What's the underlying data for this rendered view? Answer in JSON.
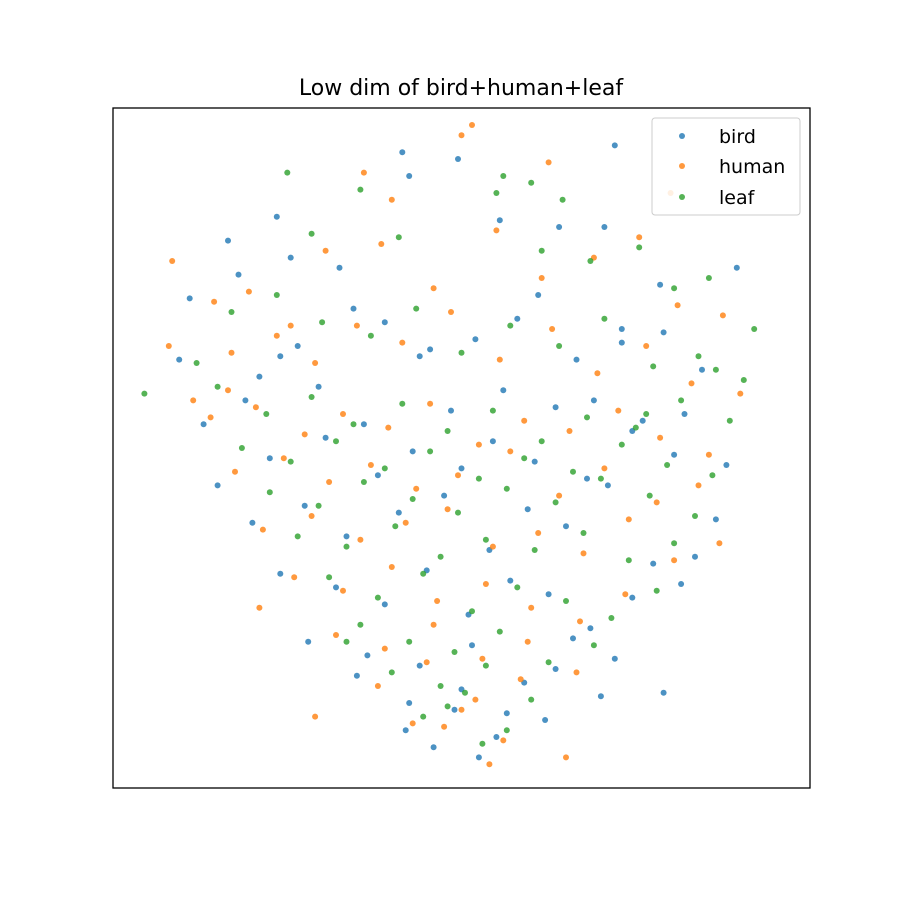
{
  "chart_data": {
    "type": "scatter",
    "title": "Low dim of bird+human+leaf",
    "xlabel": "",
    "ylabel": "",
    "x_ticks": "hidden",
    "y_ticks": "hidden",
    "xlim": [
      -1.0,
      1.0
    ],
    "ylim": [
      -1.0,
      1.0
    ],
    "grid": false,
    "legend": {
      "position": "top-right"
    },
    "series": [
      {
        "name": "bird",
        "color": "#1f77b4",
        "x": [
          -0.17,
          -0.15,
          -0.01,
          0.44,
          0.11,
          0.28,
          -0.53,
          -0.67,
          -0.78,
          -0.64,
          -0.52,
          -0.12,
          -0.35,
          -0.49,
          0.22,
          0.41,
          0.57,
          0.79,
          0.46,
          -0.81,
          -0.74,
          -0.58,
          -0.47,
          -0.31,
          -0.22,
          -0.09,
          0.04,
          0.16,
          0.33,
          0.46,
          0.58,
          0.69,
          -0.62,
          -0.41,
          -0.28,
          -0.03,
          0.12,
          0.27,
          0.38,
          0.52,
          0.64,
          0.76,
          -0.7,
          -0.55,
          -0.39,
          -0.24,
          -0.14,
          0.0,
          0.09,
          0.21,
          0.36,
          0.49,
          0.61,
          0.73,
          -0.6,
          -0.45,
          -0.33,
          -0.18,
          -0.05,
          0.08,
          0.19,
          0.3,
          0.42,
          0.55,
          0.67,
          -0.52,
          -0.36,
          -0.22,
          -0.1,
          0.02,
          0.14,
          0.25,
          0.37,
          0.49,
          0.63,
          -0.44,
          -0.27,
          -0.12,
          0.03,
          0.18,
          0.32,
          0.44,
          0.58,
          -0.3,
          -0.15,
          0.0,
          0.13,
          0.27,
          0.4,
          -0.16,
          -0.02,
          0.1,
          0.24,
          -0.08,
          0.05
        ],
        "y": [
          0.87,
          0.8,
          0.85,
          0.89,
          0.67,
          0.65,
          0.68,
          0.61,
          0.44,
          0.51,
          0.27,
          0.27,
          0.53,
          0.56,
          0.45,
          0.65,
          0.48,
          0.53,
          0.35,
          0.26,
          0.07,
          0.21,
          0.3,
          0.41,
          0.37,
          0.29,
          0.32,
          0.38,
          0.26,
          0.31,
          0.34,
          0.23,
          0.14,
          0.18,
          0.07,
          0.11,
          0.17,
          0.12,
          0.14,
          0.08,
          0.1,
          -0.05,
          -0.11,
          -0.03,
          0.03,
          -0.08,
          -0.01,
          -0.06,
          0.02,
          -0.04,
          -0.09,
          0.05,
          -0.02,
          -0.21,
          -0.22,
          -0.17,
          -0.26,
          -0.19,
          -0.14,
          -0.3,
          -0.18,
          -0.23,
          -0.11,
          -0.34,
          -0.32,
          -0.37,
          -0.41,
          -0.46,
          -0.36,
          -0.49,
          -0.39,
          -0.43,
          -0.53,
          -0.44,
          -0.4,
          -0.57,
          -0.61,
          -0.64,
          -0.58,
          -0.69,
          -0.56,
          -0.62,
          -0.72,
          -0.67,
          -0.75,
          -0.71,
          -0.78,
          -0.65,
          -0.73,
          -0.83,
          -0.77,
          -0.85,
          -0.8,
          -0.88,
          -0.91
        ]
      },
      {
        "name": "human",
        "color": "#ff7f0e",
        "x": [
          0.03,
          0.0,
          -0.28,
          -0.2,
          0.25,
          0.6,
          -0.83,
          -0.84,
          -0.71,
          -0.61,
          -0.67,
          -0.49,
          -0.39,
          -0.23,
          -0.08,
          0.1,
          0.23,
          0.38,
          0.51,
          0.62,
          0.75,
          -0.77,
          -0.66,
          -0.53,
          -0.42,
          -0.3,
          -0.17,
          -0.03,
          0.11,
          0.26,
          0.39,
          0.53,
          0.66,
          0.8,
          -0.72,
          -0.59,
          -0.45,
          -0.34,
          -0.21,
          -0.09,
          0.05,
          0.18,
          0.31,
          0.45,
          0.57,
          0.71,
          -0.65,
          -0.51,
          -0.38,
          -0.26,
          -0.13,
          -0.01,
          0.14,
          0.28,
          0.41,
          0.56,
          0.68,
          -0.57,
          -0.43,
          -0.29,
          -0.16,
          -0.04,
          0.09,
          0.22,
          0.35,
          0.48,
          0.61,
          0.74,
          -0.48,
          -0.34,
          -0.2,
          -0.07,
          0.07,
          0.2,
          0.34,
          0.47,
          -0.36,
          -0.22,
          -0.08,
          0.06,
          0.19,
          0.33,
          -0.24,
          -0.1,
          0.04,
          0.17,
          -0.14,
          0.0,
          0.12,
          -0.05,
          0.08,
          -0.42,
          0.3,
          -0.58
        ],
        "y": [
          0.95,
          0.92,
          0.81,
          0.73,
          0.84,
          0.75,
          0.55,
          0.3,
          0.43,
          0.46,
          0.17,
          0.36,
          0.58,
          0.6,
          0.47,
          0.64,
          0.5,
          0.56,
          0.62,
          0.42,
          0.39,
          0.14,
          0.28,
          0.33,
          0.25,
          0.36,
          0.31,
          0.4,
          0.26,
          0.35,
          0.22,
          0.3,
          0.19,
          0.16,
          0.09,
          0.12,
          0.04,
          0.1,
          0.06,
          0.13,
          0.01,
          0.08,
          0.05,
          0.11,
          0.03,
          -0.02,
          -0.07,
          -0.03,
          -0.1,
          -0.05,
          -0.12,
          -0.08,
          -0.01,
          -0.14,
          -0.06,
          -0.16,
          -0.11,
          -0.24,
          -0.2,
          -0.27,
          -0.22,
          -0.18,
          -0.29,
          -0.25,
          -0.31,
          -0.21,
          -0.33,
          -0.28,
          -0.38,
          -0.42,
          -0.35,
          -0.45,
          -0.4,
          -0.47,
          -0.51,
          -0.43,
          -0.55,
          -0.59,
          -0.52,
          -0.62,
          -0.57,
          -0.66,
          -0.7,
          -0.63,
          -0.74,
          -0.68,
          -0.81,
          -0.77,
          -0.86,
          -0.82,
          -0.93,
          -0.79,
          -0.91,
          -0.47
        ]
      },
      {
        "name": "leaf",
        "color": "#2ca02c",
        "x": [
          0.12,
          0.2,
          0.29,
          -0.5,
          -0.43,
          -0.29,
          0.1,
          -0.18,
          0.23,
          0.37,
          0.51,
          0.71,
          0.61,
          0.84,
          0.73,
          -0.76,
          -0.91,
          -0.66,
          -0.53,
          -0.4,
          -0.26,
          -0.13,
          0.0,
          0.14,
          0.28,
          0.41,
          0.55,
          0.68,
          0.81,
          -0.7,
          -0.56,
          -0.43,
          -0.31,
          -0.17,
          -0.04,
          0.09,
          0.23,
          0.36,
          0.5,
          0.63,
          0.77,
          -0.63,
          -0.49,
          -0.36,
          -0.22,
          -0.09,
          0.05,
          0.18,
          0.32,
          0.46,
          0.59,
          0.72,
          -0.55,
          -0.41,
          -0.28,
          -0.14,
          -0.01,
          0.13,
          0.27,
          0.4,
          0.54,
          0.67,
          -0.47,
          -0.33,
          -0.19,
          -0.06,
          0.07,
          0.21,
          0.35,
          0.48,
          0.61,
          -0.38,
          -0.24,
          -0.11,
          0.03,
          0.16,
          0.3,
          0.43,
          0.56,
          -0.29,
          -0.15,
          -0.02,
          0.11,
          0.25,
          0.38,
          -0.2,
          -0.06,
          0.07,
          0.2,
          -0.11,
          0.01,
          0.13,
          -0.04,
          0.06,
          0.53,
          -0.33
        ],
        "y": [
          0.8,
          0.78,
          0.73,
          0.81,
          0.63,
          0.76,
          0.75,
          0.62,
          0.58,
          0.55,
          0.59,
          0.5,
          0.47,
          0.35,
          0.23,
          0.25,
          0.16,
          0.4,
          0.45,
          0.37,
          0.33,
          0.41,
          0.28,
          0.36,
          0.3,
          0.38,
          0.24,
          0.27,
          0.2,
          0.18,
          0.1,
          0.15,
          0.07,
          0.13,
          0.05,
          0.11,
          0.02,
          0.09,
          0.06,
          0.14,
          0.08,
          0.0,
          -0.04,
          0.02,
          -0.06,
          -0.01,
          -0.09,
          -0.03,
          -0.07,
          0.01,
          -0.05,
          -0.08,
          -0.13,
          -0.17,
          -0.1,
          -0.15,
          -0.19,
          -0.12,
          -0.16,
          -0.09,
          -0.14,
          -0.2,
          -0.26,
          -0.29,
          -0.23,
          -0.32,
          -0.27,
          -0.3,
          -0.25,
          -0.33,
          -0.28,
          -0.38,
          -0.44,
          -0.37,
          -0.48,
          -0.41,
          -0.45,
          -0.5,
          -0.42,
          -0.52,
          -0.57,
          -0.6,
          -0.54,
          -0.63,
          -0.58,
          -0.66,
          -0.7,
          -0.64,
          -0.74,
          -0.79,
          -0.72,
          -0.83,
          -0.76,
          -0.87,
          0.1,
          -0.57
        ]
      }
    ]
  }
}
